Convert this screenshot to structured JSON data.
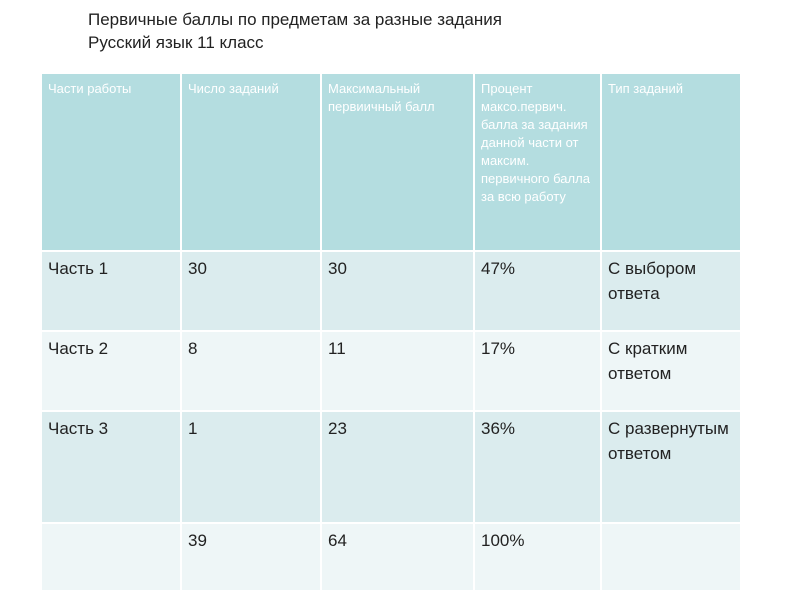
{
  "header": {
    "title": "Первичные баллы по предметам за разные задания",
    "subtitle": "Русский язык 11 класс"
  },
  "table": {
    "columns": [
      "Части работы",
      "Число заданий",
      "Максимальный первиичный балл",
      "Процент максо.первич. балла за задания данной части от максим. первичного балла за всю работу",
      "Тип заданий"
    ],
    "rows": [
      [
        "Часть 1",
        "30",
        "30",
        "47%",
        "С выбором ответа"
      ],
      [
        "Часть 2",
        "8",
        "11",
        "17%",
        "С кратким ответом"
      ],
      [
        "Часть 3",
        "1",
        "23",
        "36%",
        "С развернутым ответом"
      ],
      [
        null,
        "39",
        "64",
        "100%",
        null
      ]
    ]
  }
}
